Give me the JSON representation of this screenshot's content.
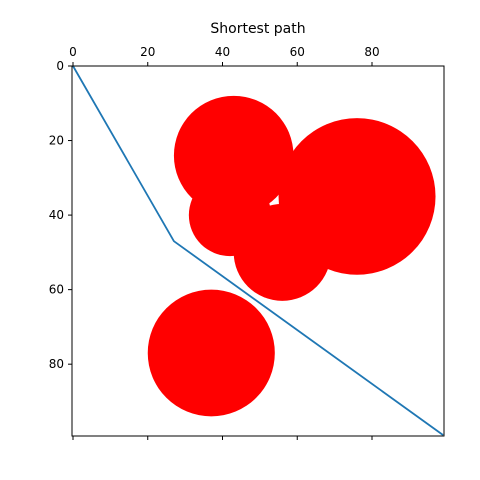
{
  "chart_data": {
    "type": "scatter",
    "title": "Shortest path",
    "xlabel": "",
    "ylabel": "",
    "xlim": [
      0,
      99
    ],
    "ylim": [
      0,
      99
    ],
    "y_inverted": true,
    "x_axis_position": "top",
    "grid": false,
    "legend": "none",
    "x_ticks": [
      0,
      20,
      40,
      60,
      80
    ],
    "y_ticks": [
      0,
      20,
      40,
      60,
      80
    ],
    "obstacles": [
      {
        "cx": 43,
        "cy": 24,
        "r": 16
      },
      {
        "cx": 42,
        "cy": 40,
        "r": 11
      },
      {
        "cx": 56,
        "cy": 50,
        "r": 13
      },
      {
        "cx": 76,
        "cy": 35,
        "r": 21
      },
      {
        "cx": 37,
        "cy": 77,
        "r": 17
      }
    ],
    "path": {
      "x": [
        0,
        27,
        99
      ],
      "y": [
        0,
        47,
        99
      ]
    },
    "colors": {
      "obstacle": "#ff0000",
      "path": "#1f77b4",
      "axes": "#000000",
      "background": "#ffffff"
    }
  }
}
